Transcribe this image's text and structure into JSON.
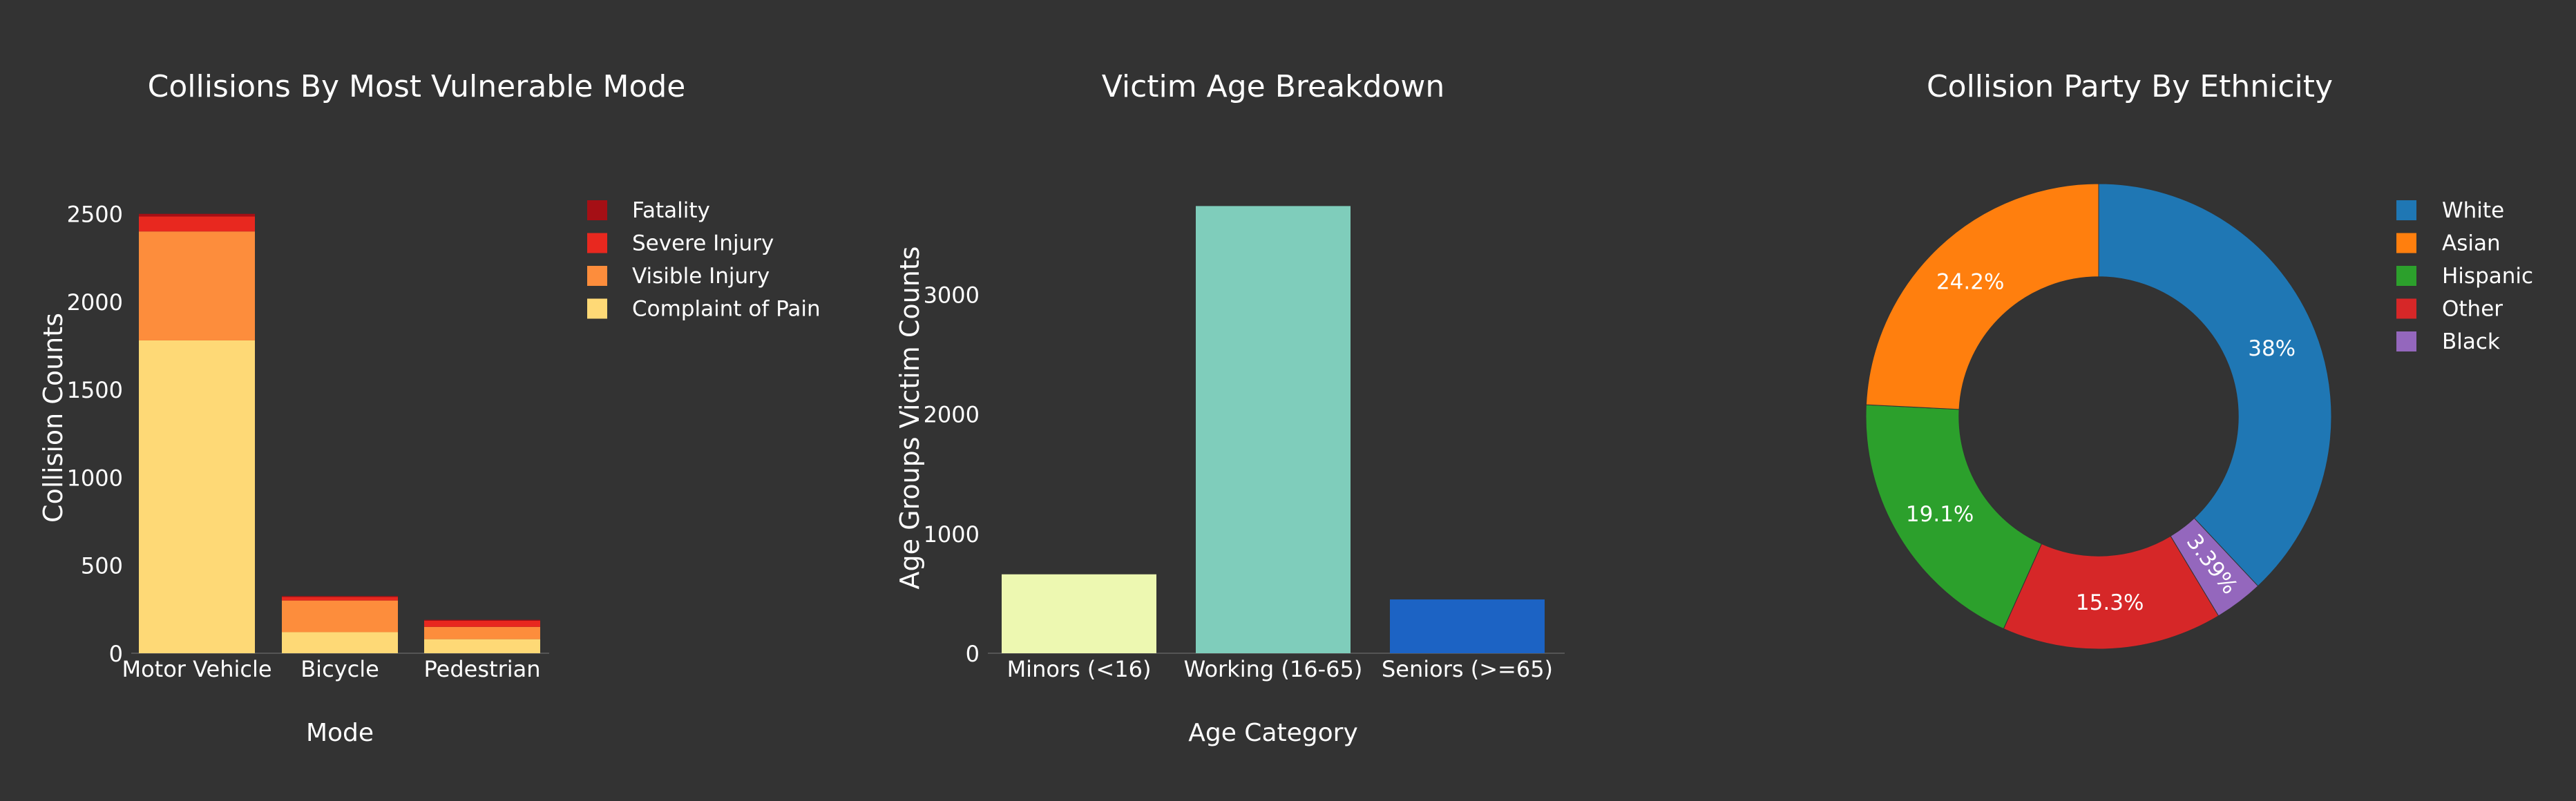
{
  "chart_data": [
    {
      "type": "bar",
      "stacked": true,
      "title": "Collisions By Most Vulnerable Mode",
      "xlabel": "Mode",
      "ylabel": "Collision Counts",
      "categories": [
        "Motor Vehicle",
        "Bicycle",
        "Pedestrian"
      ],
      "ylim": [
        0,
        2550
      ],
      "yticks": [
        0,
        500,
        1000,
        1500,
        2000,
        2500
      ],
      "legend_position": "right",
      "grid": false,
      "series": [
        {
          "name": "Complaint of Pain",
          "color": "#fed976",
          "values": [
            1780,
            120,
            80
          ]
        },
        {
          "name": "Visible Injury",
          "color": "#fd8d3c",
          "values": [
            620,
            180,
            70
          ]
        },
        {
          "name": "Severe Injury",
          "color": "#e8281f",
          "values": [
            85,
            20,
            35
          ]
        },
        {
          "name": "Fatality",
          "color": "#a50f15",
          "values": [
            15,
            5,
            5
          ]
        }
      ]
    },
    {
      "type": "bar",
      "title": "Victim Age Breakdown",
      "xlabel": "Age Category",
      "ylabel": "Age Groups Victim Counts",
      "categories": [
        "Minors (<16)",
        "Working (16-65)",
        "Seniors (>=65)"
      ],
      "values": [
        660,
        3740,
        450
      ],
      "colors": [
        "#edf8b1",
        "#7fcdbb",
        "#1c63c4"
      ],
      "ylim": [
        0,
        3800
      ],
      "yticks": [
        0,
        1000,
        2000,
        3000
      ],
      "grid": false
    },
    {
      "type": "pie",
      "hole": 0.6,
      "title": "Collision Party By Ethnicity",
      "legend_position": "right",
      "slices": [
        {
          "name": "White",
          "value": 38.0,
          "label": "38%",
          "color": "#1f77b4"
        },
        {
          "name": "Black",
          "value": 3.39,
          "label": "3.39%",
          "color": "#9467bd"
        },
        {
          "name": "Other",
          "value": 15.3,
          "label": "15.3%",
          "color": "#d62728"
        },
        {
          "name": "Hispanic",
          "value": 19.1,
          "label": "19.1%",
          "color": "#2ca02c"
        },
        {
          "name": "Asian",
          "value": 24.2,
          "label": "24.2%",
          "color": "#ff7f0e"
        }
      ],
      "legend_order": [
        "White",
        "Asian",
        "Hispanic",
        "Other",
        "Black"
      ]
    }
  ]
}
